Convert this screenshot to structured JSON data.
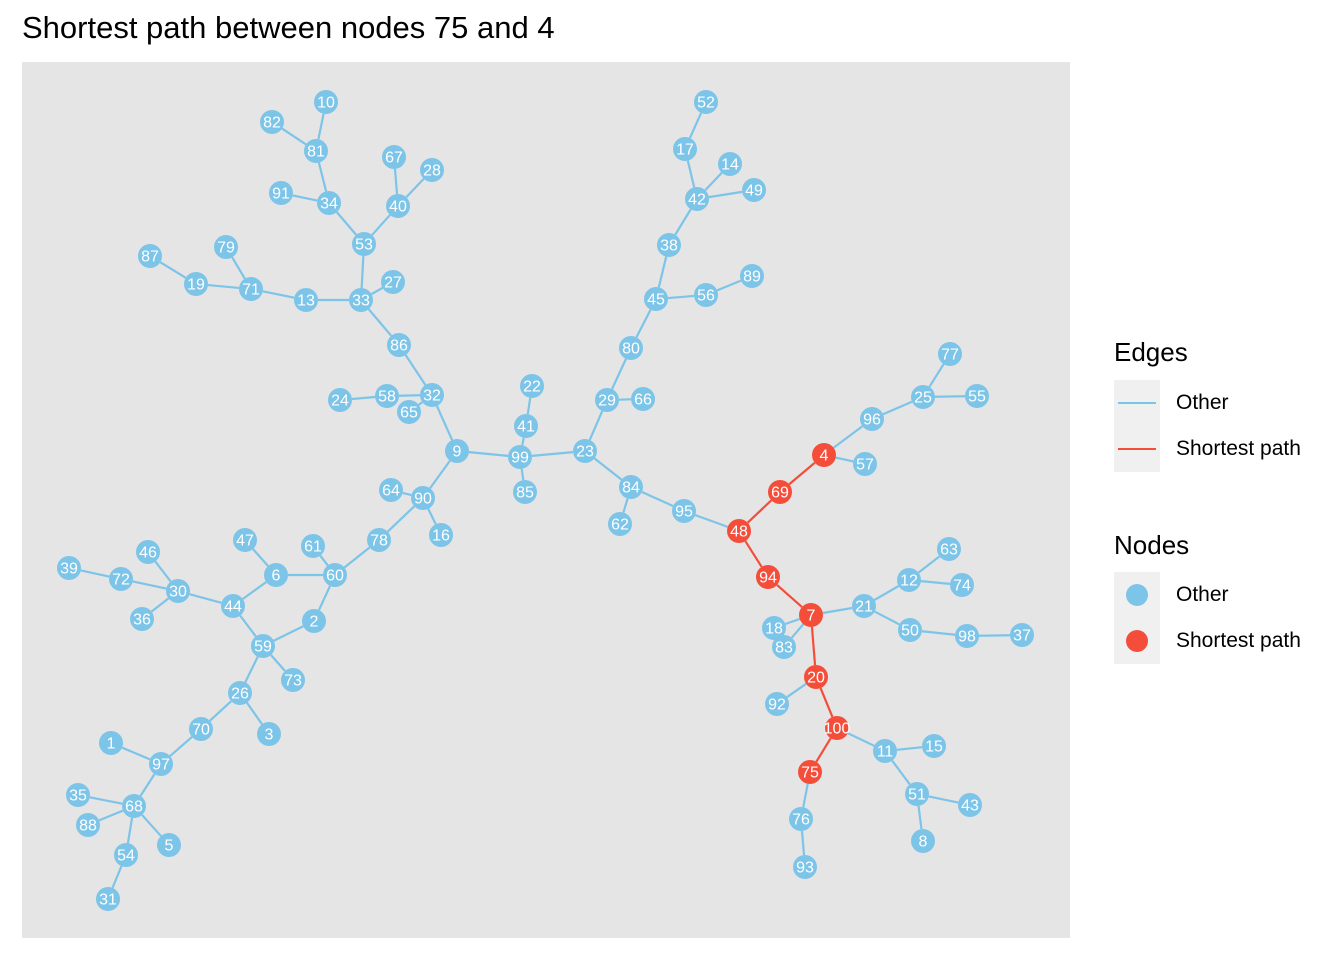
{
  "title": "Shortest path between nodes 75 and 4",
  "colors": {
    "other": "#7CC4E8",
    "path": "#F44E3B",
    "panel": "#E5E5E5"
  },
  "legend": {
    "edges": {
      "title": "Edges",
      "items": [
        {
          "label": "Other",
          "kind": "other"
        },
        {
          "label": "Shortest path",
          "kind": "path"
        }
      ]
    },
    "nodes": {
      "title": "Nodes",
      "items": [
        {
          "label": "Other",
          "kind": "other"
        },
        {
          "label": "Shortest path",
          "kind": "path"
        }
      ]
    }
  },
  "graph": {
    "path": [
      75,
      100,
      20,
      7,
      94,
      48,
      69,
      4
    ],
    "nodes": [
      1,
      2,
      3,
      4,
      5,
      6,
      7,
      8,
      9,
      10,
      11,
      12,
      13,
      14,
      15,
      16,
      17,
      18,
      19,
      20,
      21,
      22,
      23,
      24,
      25,
      26,
      27,
      28,
      29,
      30,
      31,
      32,
      33,
      34,
      35,
      36,
      37,
      38,
      39,
      40,
      41,
      42,
      43,
      44,
      45,
      46,
      47,
      48,
      49,
      50,
      51,
      52,
      53,
      54,
      55,
      56,
      57,
      58,
      59,
      60,
      61,
      62,
      63,
      64,
      65,
      66,
      67,
      68,
      69,
      70,
      71,
      72,
      73,
      74,
      75,
      76,
      77,
      78,
      79,
      80,
      81,
      82,
      83,
      84,
      85,
      86,
      87,
      88,
      89,
      90,
      91,
      92,
      93,
      94,
      95,
      96,
      97,
      98,
      99,
      100
    ],
    "edges": [
      [
        10,
        81
      ],
      [
        82,
        81
      ],
      [
        81,
        34
      ],
      [
        91,
        34
      ],
      [
        34,
        53
      ],
      [
        67,
        40
      ],
      [
        28,
        40
      ],
      [
        40,
        53
      ],
      [
        53,
        33
      ],
      [
        27,
        33
      ],
      [
        87,
        19
      ],
      [
        19,
        71
      ],
      [
        79,
        71
      ],
      [
        71,
        13
      ],
      [
        13,
        33
      ],
      [
        33,
        86
      ],
      [
        86,
        32
      ],
      [
        24,
        58
      ],
      [
        58,
        32
      ],
      [
        65,
        32
      ],
      [
        32,
        9
      ],
      [
        9,
        99
      ],
      [
        9,
        90
      ],
      [
        22,
        41
      ],
      [
        41,
        99
      ],
      [
        99,
        85
      ],
      [
        99,
        23
      ],
      [
        52,
        17
      ],
      [
        17,
        42
      ],
      [
        14,
        42
      ],
      [
        49,
        42
      ],
      [
        42,
        38
      ],
      [
        38,
        45
      ],
      [
        45,
        56
      ],
      [
        56,
        89
      ],
      [
        45,
        80
      ],
      [
        80,
        29
      ],
      [
        29,
        66
      ],
      [
        29,
        23
      ],
      [
        23,
        84
      ],
      [
        84,
        62
      ],
      [
        84,
        95
      ],
      [
        95,
        48
      ],
      [
        77,
        25
      ],
      [
        25,
        55
      ],
      [
        25,
        96
      ],
      [
        96,
        4
      ],
      [
        4,
        57
      ],
      [
        4,
        69
      ],
      [
        69,
        48
      ],
      [
        48,
        94
      ],
      [
        94,
        7
      ],
      [
        7,
        18
      ],
      [
        7,
        83
      ],
      [
        7,
        21
      ],
      [
        21,
        12
      ],
      [
        12,
        63
      ],
      [
        12,
        74
      ],
      [
        21,
        50
      ],
      [
        50,
        98
      ],
      [
        98,
        37
      ],
      [
        7,
        20
      ],
      [
        20,
        92
      ],
      [
        20,
        100
      ],
      [
        100,
        11
      ],
      [
        11,
        15
      ],
      [
        11,
        51
      ],
      [
        51,
        43
      ],
      [
        51,
        8
      ],
      [
        100,
        75
      ],
      [
        75,
        76
      ],
      [
        76,
        93
      ],
      [
        64,
        90
      ],
      [
        90,
        16
      ],
      [
        90,
        78
      ],
      [
        78,
        60
      ],
      [
        61,
        60
      ],
      [
        60,
        6
      ],
      [
        60,
        2
      ],
      [
        2,
        59
      ],
      [
        47,
        6
      ],
      [
        6,
        44
      ],
      [
        39,
        72
      ],
      [
        72,
        30
      ],
      [
        46,
        30
      ],
      [
        36,
        30
      ],
      [
        30,
        44
      ],
      [
        44,
        59
      ],
      [
        59,
        73
      ],
      [
        59,
        26
      ],
      [
        26,
        3
      ],
      [
        26,
        70
      ],
      [
        70,
        97
      ],
      [
        1,
        97
      ],
      [
        97,
        68
      ],
      [
        35,
        68
      ],
      [
        88,
        68
      ],
      [
        68,
        5
      ],
      [
        68,
        54
      ],
      [
        54,
        31
      ]
    ]
  }
}
